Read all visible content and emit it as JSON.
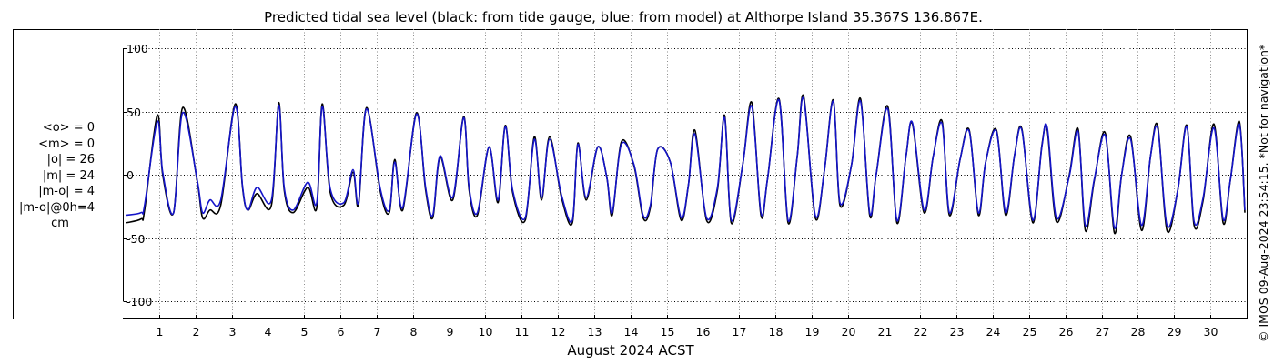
{
  "title": "Predicted tidal sea level (black: from tide gauge, blue: from model) at Althorpe Island 35.367S 136.867E.",
  "side_note": "© IMOS 09-Aug-2024 23:54:15. *Not for navigation*",
  "stats": [
    "<o> = 0",
    "<m> = 0",
    "|o| = 26",
    "|m| = 24",
    "|m-o| = 4",
    "|m-o|@0h=4",
    "cm"
  ],
  "colors": {
    "gauge": "#000000",
    "model": "#1414c8",
    "grid": "#8c8c8c"
  },
  "chart_data": {
    "type": "line",
    "title": "Predicted tidal sea level (black: from tide gauge, blue: from model) at Althorpe Island 35.367S 136.867E.",
    "xlabel": "August 2024 ACST",
    "ylabel": "",
    "xlim": [
      0.0,
      31.0
    ],
    "ylim": [
      -105,
      105
    ],
    "xticks": [
      1,
      2,
      3,
      4,
      5,
      6,
      7,
      8,
      9,
      10,
      11,
      12,
      13,
      14,
      15,
      16,
      17,
      18,
      19,
      20,
      21,
      22,
      23,
      24,
      25,
      26,
      27,
      28,
      29,
      30
    ],
    "yticks": [
      100,
      50,
      0,
      -50,
      -100
    ],
    "grid": "dotted",
    "series": [
      {
        "name": "black: from tide gauge",
        "x": [
          0.1,
          0.5,
          0.6,
          0.95,
          1.1,
          1.4,
          1.65,
          2.05,
          2.2,
          2.4,
          2.7,
          3.1,
          3.3,
          3.45,
          3.7,
          4.1,
          4.3,
          4.45,
          4.7,
          5.1,
          5.35,
          5.5,
          5.72,
          6.1,
          6.35,
          6.5,
          6.72,
          7.1,
          7.35,
          7.5,
          7.72,
          8.1,
          8.35,
          8.55,
          8.75,
          9.1,
          9.4,
          9.55,
          9.78,
          10.1,
          10.35,
          10.55,
          10.75,
          11.1,
          11.35,
          11.55,
          11.77,
          12.1,
          12.4,
          12.55,
          12.78,
          13.1,
          13.35,
          13.5,
          13.75,
          14.1,
          14.35,
          14.55,
          14.75,
          15.1,
          15.4,
          15.6,
          15.78,
          16.1,
          16.4,
          16.6,
          16.78,
          17.1,
          17.35,
          17.6,
          17.78,
          18.1,
          18.35,
          18.6,
          18.78,
          19.1,
          19.35,
          19.6,
          19.78,
          20.1,
          20.35,
          20.6,
          20.78,
          21.1,
          21.35,
          21.6,
          21.78,
          22.1,
          22.35,
          22.6,
          22.8,
          23.1,
          23.35,
          23.6,
          23.8,
          24.1,
          24.35,
          24.6,
          24.8,
          25.1,
          25.35,
          25.5,
          25.75,
          26.1,
          26.35,
          26.55,
          26.8,
          27.1,
          27.35,
          27.55,
          27.8,
          28.1,
          28.35,
          28.55,
          28.8,
          29.1,
          29.35,
          29.55,
          29.8,
          30.1,
          30.35,
          30.55,
          30.8,
          30.95
        ],
        "values": [
          -38,
          -35,
          -28,
          47,
          0,
          -30,
          53,
          -5,
          -34,
          -28,
          -24,
          56,
          -10,
          -28,
          -15,
          -24,
          57,
          -12,
          -30,
          -10,
          -26,
          56,
          -14,
          -24,
          2,
          -24,
          53,
          -13,
          -30,
          12,
          -28,
          49,
          -12,
          -34,
          14,
          -20,
          46,
          -12,
          -32,
          22,
          -22,
          39,
          -14,
          -36,
          30,
          -20,
          30,
          -18,
          -38,
          25,
          -20,
          22,
          -2,
          -32,
          26,
          7,
          -34,
          -26,
          20,
          10,
          -36,
          -8,
          35,
          -36,
          -12,
          47,
          -38,
          8,
          57,
          -32,
          -4,
          60,
          -38,
          14,
          62,
          -34,
          3,
          59,
          -24,
          8,
          60,
          -32,
          0,
          54,
          -38,
          14,
          40,
          -30,
          14,
          42,
          -32,
          13,
          35,
          -32,
          10,
          35,
          -32,
          16,
          36,
          -38,
          23,
          35,
          -37,
          -1,
          36,
          -44,
          -4,
          33,
          -46,
          0,
          30,
          -44,
          15,
          38,
          -44,
          -12,
          39,
          -40,
          -20,
          40,
          -38,
          -4,
          42,
          -30
        ]
      },
      {
        "name": "blue: from model",
        "x": [
          0.1,
          0.5,
          0.6,
          0.95,
          1.1,
          1.4,
          1.65,
          2.05,
          2.2,
          2.4,
          2.7,
          3.1,
          3.3,
          3.45,
          3.7,
          4.1,
          4.3,
          4.45,
          4.7,
          5.1,
          5.35,
          5.5,
          5.72,
          6.1,
          6.35,
          6.5,
          6.72,
          7.1,
          7.35,
          7.5,
          7.72,
          8.1,
          8.35,
          8.55,
          8.75,
          9.1,
          9.4,
          9.55,
          9.78,
          10.1,
          10.35,
          10.55,
          10.75,
          11.1,
          11.35,
          11.55,
          11.77,
          12.1,
          12.4,
          12.55,
          12.78,
          13.1,
          13.35,
          13.5,
          13.75,
          14.1,
          14.35,
          14.55,
          14.75,
          15.1,
          15.4,
          15.6,
          15.78,
          16.1,
          16.4,
          16.6,
          16.78,
          17.1,
          17.35,
          17.6,
          17.78,
          18.1,
          18.35,
          18.6,
          18.78,
          19.1,
          19.35,
          19.6,
          19.78,
          20.1,
          20.35,
          20.6,
          20.78,
          21.1,
          21.35,
          21.6,
          21.78,
          22.1,
          22.35,
          22.6,
          22.8,
          23.1,
          23.35,
          23.6,
          23.8,
          24.1,
          24.35,
          24.6,
          24.8,
          25.1,
          25.35,
          25.5,
          25.75,
          26.1,
          26.35,
          26.55,
          26.8,
          27.1,
          27.35,
          27.55,
          27.8,
          28.1,
          28.35,
          28.55,
          28.8,
          29.1,
          29.35,
          29.55,
          29.8,
          30.1,
          30.35,
          30.55,
          30.8,
          30.95
        ],
        "values": [
          -32,
          -30,
          -24,
          42,
          2,
          -30,
          49,
          -4,
          -30,
          -20,
          -20,
          54,
          -9,
          -28,
          -10,
          -20,
          55,
          -10,
          -28,
          -6,
          -22,
          54,
          -11,
          -22,
          4,
          -22,
          52,
          -11,
          -28,
          10,
          -26,
          48,
          -10,
          -32,
          15,
          -18,
          45,
          -10,
          -30,
          22,
          -20,
          38,
          -12,
          -34,
          28,
          -18,
          28,
          -16,
          -36,
          24,
          -18,
          22,
          -2,
          -30,
          24,
          8,
          -32,
          -24,
          20,
          10,
          -34,
          -8,
          32,
          -34,
          -10,
          45,
          -36,
          8,
          54,
          -30,
          -4,
          59,
          -36,
          14,
          60,
          -32,
          3,
          58,
          -22,
          8,
          58,
          -30,
          0,
          52,
          -36,
          14,
          41,
          -28,
          14,
          40,
          -30,
          13,
          34,
          -30,
          10,
          34,
          -30,
          16,
          35,
          -36,
          22,
          37,
          -34,
          -2,
          34,
          -40,
          -3,
          31,
          -42,
          0,
          28,
          -40,
          15,
          36,
          -40,
          -12,
          38,
          -37,
          -18,
          37,
          -35,
          -4,
          40,
          -28
        ]
      }
    ]
  }
}
